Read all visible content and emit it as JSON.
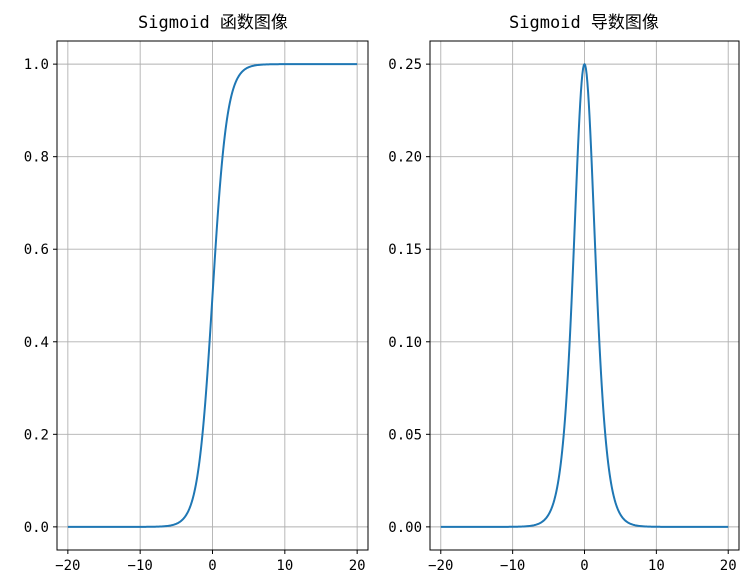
{
  "chart_data": [
    {
      "type": "line",
      "title": "Sigmoid 函数图像",
      "function": "sigmoid",
      "xlim": [
        -21.5,
        21.5
      ],
      "ylim": [
        -0.05,
        1.05
      ],
      "x_range": [
        -20,
        20
      ],
      "xticks": [
        -20,
        -10,
        0,
        10,
        20
      ],
      "xtick_labels": [
        "−20",
        "−10",
        "0",
        "10",
        "20"
      ],
      "yticks": [
        0.0,
        0.2,
        0.4,
        0.6,
        0.8,
        1.0
      ],
      "ytick_labels": [
        "0.0",
        "0.2",
        "0.4",
        "0.6",
        "0.8",
        "1.0"
      ],
      "grid": true,
      "line_color": "#1f77b4",
      "series": [
        {
          "x": [
            -20,
            -10,
            -6,
            -4,
            -2,
            -1,
            0,
            1,
            2,
            4,
            6,
            10,
            20
          ],
          "y": [
            0.0,
            4.54e-05,
            0.00247,
            0.018,
            0.119,
            0.269,
            0.5,
            0.731,
            0.881,
            0.982,
            0.9975,
            0.99995,
            1.0
          ]
        }
      ]
    },
    {
      "type": "line",
      "title": "Sigmoid 导数图像",
      "function": "sigmoid_derivative",
      "xlim": [
        -21.5,
        21.5
      ],
      "ylim": [
        -0.0125,
        0.2625
      ],
      "x_range": [
        -20,
        20
      ],
      "xticks": [
        -20,
        -10,
        0,
        10,
        20
      ],
      "xtick_labels": [
        "−20",
        "−10",
        "0",
        "10",
        "20"
      ],
      "yticks": [
        0.0,
        0.05,
        0.1,
        0.15,
        0.2,
        0.25
      ],
      "ytick_labels": [
        "0.00",
        "0.05",
        "0.10",
        "0.15",
        "0.20",
        "0.25"
      ],
      "grid": true,
      "line_color": "#1f77b4",
      "series": [
        {
          "x": [
            -20,
            -10,
            -6,
            -4,
            -2,
            -1,
            0,
            1,
            2,
            4,
            6,
            10,
            20
          ],
          "y": [
            0.0,
            4.54e-05,
            0.00247,
            0.0177,
            0.105,
            0.197,
            0.25,
            0.197,
            0.105,
            0.0177,
            0.00247,
            4.54e-05,
            0.0
          ]
        }
      ]
    }
  ]
}
